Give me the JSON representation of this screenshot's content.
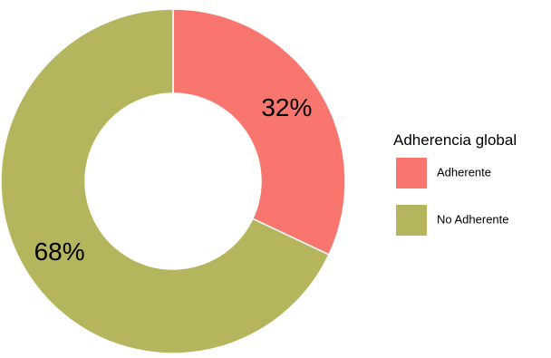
{
  "chart_data": {
    "type": "pie",
    "subtype": "donut",
    "categories": [
      "Adherente",
      "No Adherente"
    ],
    "values": [
      32,
      68
    ],
    "labels": [
      "32%",
      "68%"
    ],
    "colors": [
      "#F8766D",
      "#B5B55D"
    ],
    "legend": {
      "title": "Adherencia global",
      "position": "right",
      "entries": [
        "Adherente",
        "No Adherente"
      ]
    },
    "grid": false
  }
}
